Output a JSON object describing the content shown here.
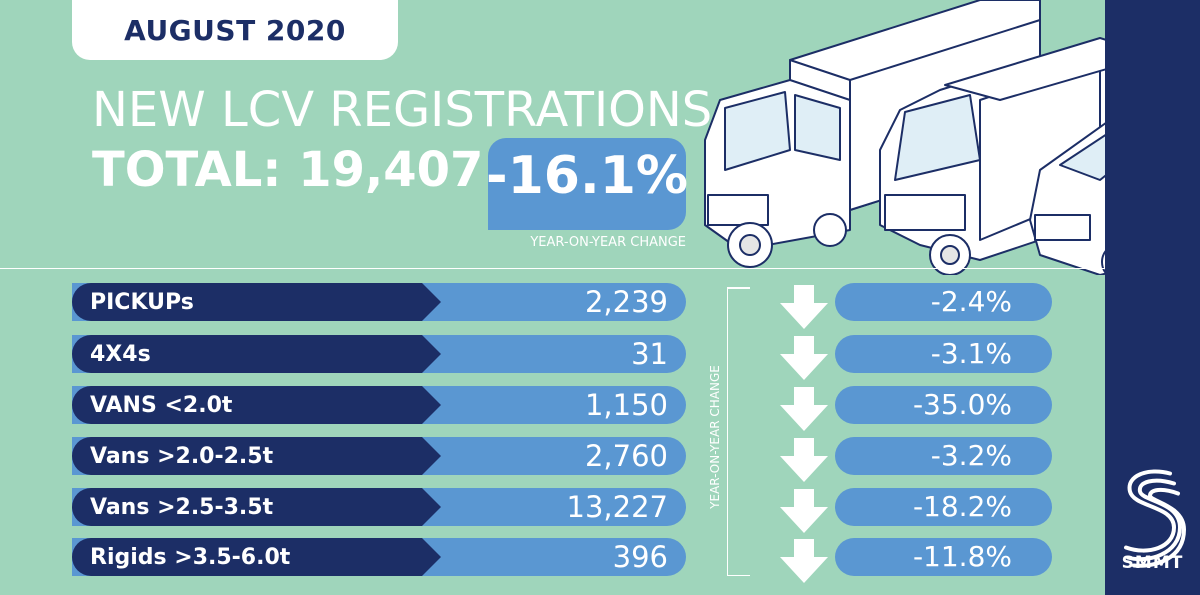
{
  "header": {
    "date": "AUGUST 2020",
    "title": "NEW LCV REGISTRATIONS",
    "total_label": "TOTAL: 19,407",
    "total_change": "-16.1%",
    "total_change_caption": "YEAR-ON-YEAR CHANGE"
  },
  "rows": [
    {
      "label": "PICKUPs",
      "value": "2,239",
      "change": "-2.4%"
    },
    {
      "label": "4X4s",
      "value": "31",
      "change": "-3.1%"
    },
    {
      "label": "VANS <2.0t",
      "value": "1,150",
      "change": "-35.0%"
    },
    {
      "label": "Vans >2.0-2.5t",
      "value": "2,760",
      "change": "-3.2%"
    },
    {
      "label": "Vans >2.5-3.5t",
      "value": "13,227",
      "change": "-18.2%"
    },
    {
      "label": "Rigids >3.5-6.0t",
      "value": "396",
      "change": "-11.8%"
    }
  ],
  "change_axis_label": "YEAR-ON-YEAR CHANGE",
  "logo": {
    "text": "SMMT",
    "icon": "smmt-logo-icon"
  },
  "colors": {
    "background": "#9fd5bb",
    "navy": "#1c2e66",
    "blue": "#5a97d2",
    "white": "#ffffff"
  }
}
